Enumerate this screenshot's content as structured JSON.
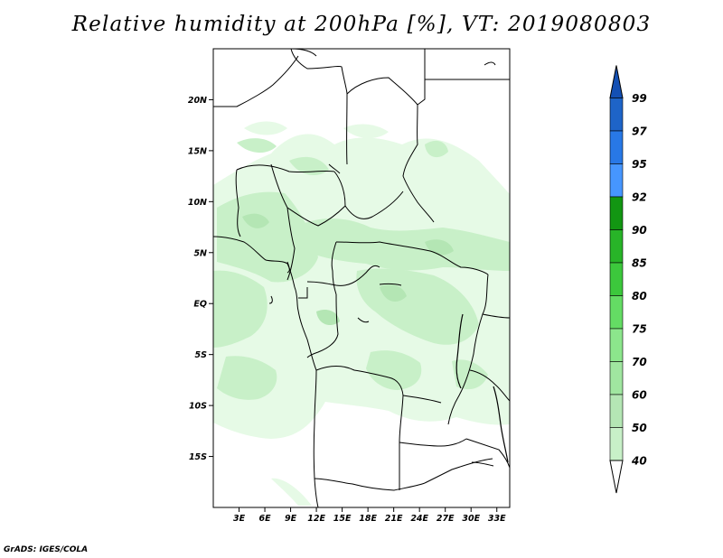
{
  "title": "Relative humidity at 200hPa [%], VT: 2019080803",
  "credit": "GrADS: IGES/COLA",
  "map": {
    "lon_range": [
      0,
      34.5
    ],
    "lat_range": [
      -20,
      25
    ],
    "lat_ticks": [
      {
        "value": 20,
        "label": "20N"
      },
      {
        "value": 15,
        "label": "15N"
      },
      {
        "value": 10,
        "label": "10N"
      },
      {
        "value": 5,
        "label": "5N"
      },
      {
        "value": 0,
        "label": "EQ"
      },
      {
        "value": -5,
        "label": "5S"
      },
      {
        "value": -10,
        "label": "10S"
      },
      {
        "value": -15,
        "label": "15S"
      }
    ],
    "lon_ticks": [
      {
        "value": 3,
        "label": "3E"
      },
      {
        "value": 6,
        "label": "6E"
      },
      {
        "value": 9,
        "label": "9E"
      },
      {
        "value": 12,
        "label": "12E"
      },
      {
        "value": 15,
        "label": "15E"
      },
      {
        "value": 18,
        "label": "18E"
      },
      {
        "value": 21,
        "label": "21E"
      },
      {
        "value": 24,
        "label": "24E"
      },
      {
        "value": 27,
        "label": "27E"
      },
      {
        "value": 30,
        "label": "30E"
      },
      {
        "value": 33,
        "label": "33E"
      }
    ]
  },
  "colorbar": {
    "levels": [
      "40",
      "50",
      "60",
      "70",
      "75",
      "80",
      "85",
      "90",
      "92",
      "95",
      "97",
      "99"
    ],
    "colors": [
      "#e6fae6",
      "#c8f0c8",
      "#b4e6b4",
      "#a0e6a0",
      "#8ce68c",
      "#64dc64",
      "#3cc83c",
      "#28b428",
      "#129612",
      "#4696ff",
      "#2878e6",
      "#1e64c8",
      "#1450b4"
    ]
  },
  "colors": {
    "rh40": "#e6fae6",
    "rh50": "#c8f0c8",
    "rh60": "#b4e6b4",
    "border": "#000000"
  }
}
